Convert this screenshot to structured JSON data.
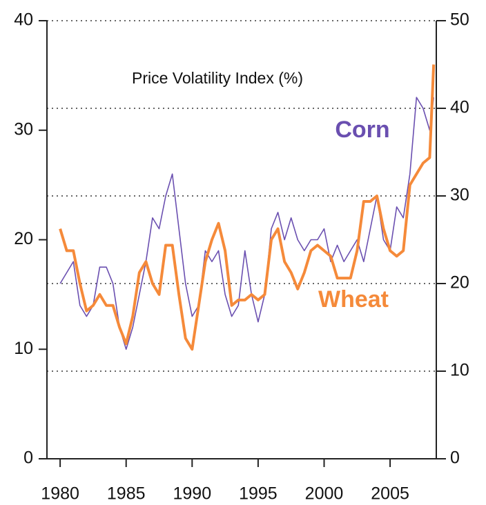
{
  "chart_data": {
    "type": "line",
    "title": "Price Volatility Index (%)",
    "x": [
      1980,
      1980.5,
      1981,
      1981.5,
      1982,
      1982.5,
      1983,
      1983.5,
      1984,
      1984.5,
      1985,
      1985.5,
      1986,
      1986.5,
      1987,
      1987.5,
      1988,
      1988.5,
      1989,
      1989.5,
      1990,
      1990.5,
      1991,
      1991.5,
      1992,
      1992.5,
      1993,
      1993.5,
      1994,
      1994.5,
      1995,
      1995.5,
      1996,
      1996.5,
      1997,
      1997.5,
      1998,
      1998.5,
      1999,
      1999.5,
      2000,
      2000.5,
      2001,
      2001.5,
      2002,
      2002.5,
      2003,
      2003.5,
      2004,
      2004.5,
      2005,
      2005.5,
      2006,
      2006.5,
      2007,
      2007.5,
      2008,
      2008.3
    ],
    "series": [
      {
        "name": "Corn",
        "color": "#6a4fb0",
        "values": [
          16,
          17,
          18,
          14,
          13,
          14,
          17.5,
          17.5,
          16,
          12,
          10,
          12,
          15,
          18,
          22,
          21,
          24,
          26,
          21,
          16,
          13,
          14,
          19,
          18,
          19,
          15,
          13,
          14,
          19,
          15,
          12.5,
          15,
          21,
          22.5,
          20,
          22,
          20,
          19,
          20,
          20,
          21,
          18,
          19.5,
          18,
          19,
          20,
          18,
          21,
          24,
          20,
          19,
          23,
          22,
          26,
          33,
          32,
          30,
          33
        ]
      },
      {
        "name": "Wheat",
        "color": "#f58a3a",
        "values": [
          21,
          19,
          19,
          16,
          13.5,
          14,
          15,
          14,
          14,
          12,
          10.5,
          13,
          17,
          18,
          16,
          15,
          19.5,
          19.5,
          15,
          11,
          10,
          14,
          18,
          20,
          21.5,
          19,
          14,
          14.5,
          14.5,
          15,
          14.5,
          15,
          20,
          21,
          18,
          17,
          15.5,
          17,
          19,
          19.5,
          19,
          18.5,
          16.5,
          16.5,
          16.5,
          19,
          23.5,
          23.5,
          24,
          21,
          19,
          18.5,
          19,
          25,
          26,
          27,
          27.5,
          36
        ]
      }
    ],
    "xlim": [
      1979,
      2008.5
    ],
    "xticks": [
      1980,
      1985,
      1990,
      1995,
      2000,
      2005
    ],
    "ylim": [
      0,
      40
    ],
    "yticks": [
      0,
      10,
      20,
      30,
      40
    ],
    "y2lim": [
      0,
      50
    ],
    "y2ticks": [
      0,
      10,
      20,
      30,
      40,
      50
    ],
    "grid": true
  }
}
